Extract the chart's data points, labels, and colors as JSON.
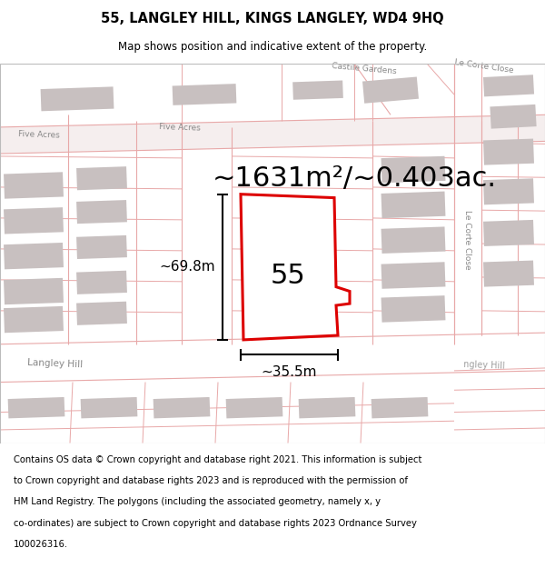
{
  "title": "55, LANGLEY HILL, KINGS LANGLEY, WD4 9HQ",
  "subtitle": "Map shows position and indicative extent of the property.",
  "area_text": "~1631m²/~0.403ac.",
  "property_number": "55",
  "width_label": "~35.5m",
  "height_label": "~69.8m",
  "map_bg": "#f0e8e8",
  "road_color": "#ffffff",
  "building_color": "#c8c0c0",
  "grid_color": "#e8a8a8",
  "plot_edge_color": "#dd0000",
  "plot_fill": "#ffffff",
  "title_fontsize": 10.5,
  "subtitle_fontsize": 8.5,
  "area_fontsize": 22,
  "label_fontsize": 11,
  "footer_fontsize": 7.2,
  "street_label_color": "#888888",
  "footer_lines": [
    "Contains OS data © Crown copyright and database right 2021. This information is subject",
    "to Crown copyright and database rights 2023 and is reproduced with the permission of",
    "HM Land Registry. The polygons (including the associated geometry, namely x, y",
    "co-ordinates) are subject to Crown copyright and database rights 2023 Ordnance Survey",
    "100026316."
  ]
}
